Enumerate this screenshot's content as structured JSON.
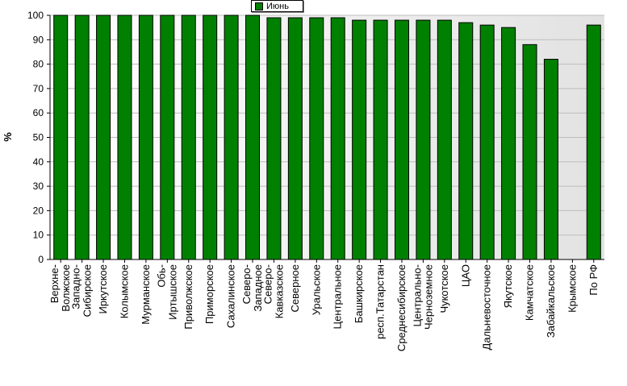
{
  "chart_data": {
    "type": "bar",
    "ylabel": "%",
    "xlabel": "",
    "ylim": [
      0,
      100
    ],
    "yticks": [
      0,
      10,
      20,
      30,
      40,
      50,
      60,
      70,
      80,
      90,
      100
    ],
    "grid": true,
    "legend_position": "top-center",
    "categories": [
      [
        "Верхне-",
        "Волжское"
      ],
      [
        "Западно-",
        "Сибирское"
      ],
      [
        "Иркутское"
      ],
      [
        "Колымское"
      ],
      [
        "Мурманское"
      ],
      [
        "Обь-",
        "Иртышское"
      ],
      [
        "Приволжское"
      ],
      [
        "Приморское"
      ],
      [
        "Сахалинское"
      ],
      [
        "Северо-",
        "Западное"
      ],
      [
        "Северо-",
        "Кавказское"
      ],
      [
        "Северное"
      ],
      [
        "Уральское"
      ],
      [
        "Центральное"
      ],
      [
        "Башкирское"
      ],
      [
        "респ.Татарстан"
      ],
      [
        "Среднесибирское"
      ],
      [
        "Центрально-",
        "Черноземное"
      ],
      [
        "Чукотское"
      ],
      [
        "ЦАО"
      ],
      [
        "Дальневосточное"
      ],
      [
        "Якутское"
      ],
      [
        "Камчатское"
      ],
      [
        "Забайкальское"
      ],
      [
        "Крымское"
      ],
      [
        "По РФ"
      ]
    ],
    "series": [
      {
        "name": "Июнь",
        "color": "#008000",
        "values": [
          100,
          100,
          100,
          100,
          100,
          100,
          100,
          100,
          100,
          100,
          99,
          99,
          99,
          99,
          98,
          98,
          98,
          98,
          98,
          97,
          96,
          95,
          88,
          82,
          null,
          96
        ]
      }
    ]
  }
}
